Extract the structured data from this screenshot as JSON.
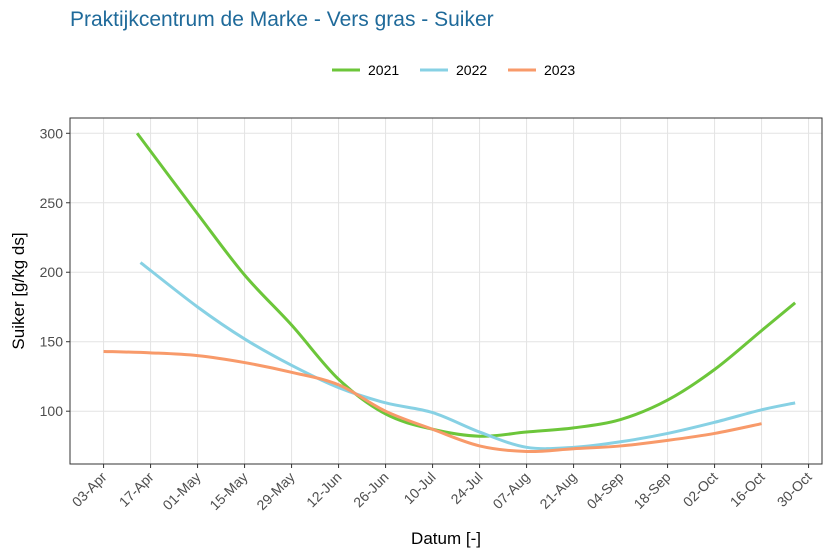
{
  "chart_data": {
    "type": "line",
    "title": "Praktijkcentrum de Marke - Vers gras - Suiker",
    "x_label": "Datum [-]",
    "y_label": "Suiker [g/kg ds]",
    "grid": true,
    "legend": "top",
    "xlim": [
      "24-Mar",
      "03-Nov"
    ],
    "xticks": [
      "03-Apr",
      "17-Apr",
      "01-May",
      "15-May",
      "29-May",
      "12-Jun",
      "26-Jun",
      "10-Jul",
      "24-Jul",
      "07-Aug",
      "21-Aug",
      "04-Sep",
      "18-Sep",
      "02-Oct",
      "16-Oct",
      "30-Oct"
    ],
    "ylim": [
      62,
      311
    ],
    "yticks": [
      100,
      150,
      200,
      250,
      300
    ],
    "series": [
      {
        "name": "2021",
        "color": "#6cc63a",
        "x": [
          "13-Apr",
          "01-May",
          "15-May",
          "29-May",
          "12-Jun",
          "26-Jun",
          "10-Jul",
          "24-Jul",
          "07-Aug",
          "21-Aug",
          "04-Sep",
          "18-Sep",
          "02-Oct",
          "16-Oct",
          "26-Oct"
        ],
        "values": [
          300,
          242,
          198,
          162,
          123,
          98,
          87,
          82,
          85,
          88,
          94,
          108,
          130,
          158,
          178
        ]
      },
      {
        "name": "2022",
        "color": "#87d1e4",
        "x": [
          "14-Apr",
          "01-May",
          "15-May",
          "29-May",
          "12-Jun",
          "26-Jun",
          "10-Jul",
          "24-Jul",
          "07-Aug",
          "21-Aug",
          "04-Sep",
          "18-Sep",
          "02-Oct",
          "16-Oct",
          "26-Oct"
        ],
        "values": [
          207,
          175,
          152,
          133,
          117,
          106,
          99,
          85,
          74,
          74,
          78,
          84,
          92,
          101,
          106
        ]
      },
      {
        "name": "2023",
        "color": "#f89a6a",
        "x": [
          "03-Apr",
          "17-Apr",
          "01-May",
          "15-May",
          "29-May",
          "12-Jun",
          "26-Jun",
          "10-Jul",
          "24-Jul",
          "07-Aug",
          "21-Aug",
          "04-Sep",
          "18-Sep",
          "02-Oct",
          "16-Oct"
        ],
        "values": [
          143,
          142,
          140,
          135,
          128,
          119,
          100,
          87,
          75,
          71,
          73,
          75,
          79,
          84,
          91
        ]
      }
    ]
  }
}
